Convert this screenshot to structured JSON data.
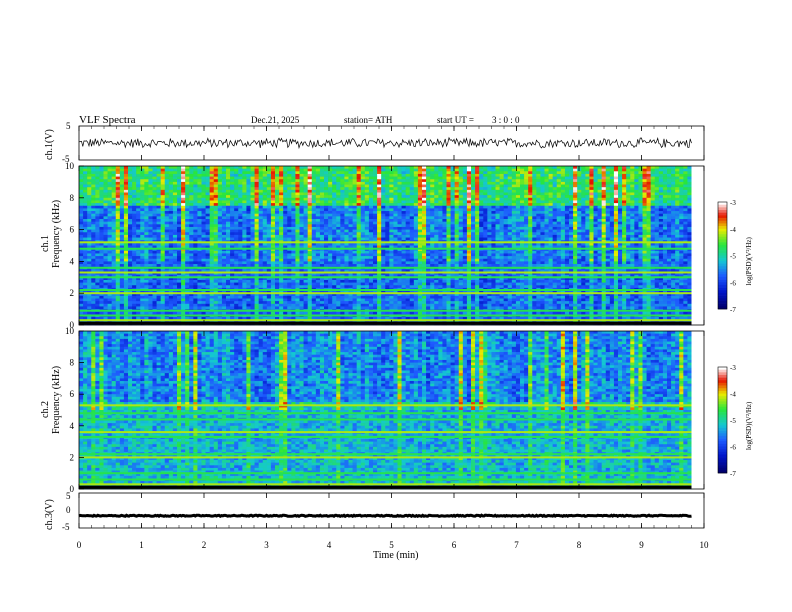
{
  "header": {
    "title": "VLF  Spectra",
    "date": "Dec.21, 2025",
    "station": "station= ATH",
    "start_label": "start  UT  =",
    "start_time": "3  : 0  : 0"
  },
  "chart_data": [
    {
      "type": "line",
      "name": "ch1-waveform",
      "ylabel": "ch.1(V)",
      "ylim": [
        -5,
        5
      ],
      "yticks": [
        "5",
        "-5"
      ],
      "xlim": [
        0,
        10
      ],
      "description_values": "noisy waveform around 0 V, amplitude roughly ±1 V",
      "baseline": 0,
      "amplitude": 1.0
    },
    {
      "type": "heatmap",
      "name": "ch1-spectrogram",
      "ylabel": "ch.1\nFrequency (kHz)",
      "ylabel_line1": "ch.1",
      "ylabel_line2": "Frequency  (kHz)",
      "ylim": [
        0,
        10
      ],
      "yticks": [
        "0",
        "2",
        "4",
        "6",
        "8",
        "10"
      ],
      "xlim": [
        0,
        9.8
      ],
      "colorbar": {
        "label": "log(PSD)(V²/Hz)",
        "range": [
          -7,
          -3
        ],
        "ticks": [
          "-3",
          "-4",
          "-5",
          "-6",
          "-7"
        ]
      },
      "bands_khz": [
        0.3,
        0.6,
        0.9,
        2.0,
        2.2,
        3.0,
        3.3,
        3.6,
        4.8,
        5.2
      ],
      "dominant": "broadband noise strongest near 8–10 kHz, weaker 4–8 kHz"
    },
    {
      "type": "heatmap",
      "name": "ch2-spectrogram",
      "ylabel_line1": "ch.2",
      "ylabel_line2": "Frequency  (kHz)",
      "ylim": [
        0,
        10
      ],
      "yticks": [
        "0",
        "2",
        "4",
        "6",
        "8",
        "10"
      ],
      "xlim": [
        0,
        9.8
      ],
      "colorbar": {
        "label": "log(PSD)(V²/Hz)",
        "range": [
          -7,
          -3
        ],
        "ticks": [
          "-3",
          "-4",
          "-5",
          "-6",
          "-7"
        ]
      },
      "bands_khz": [
        0.3,
        0.6,
        1.0,
        2.0,
        2.2,
        3.3,
        3.6,
        4.4,
        4.8,
        5.3
      ],
      "dominant": "broadband noise 5–10 kHz"
    },
    {
      "type": "line",
      "name": "ch3-waveform",
      "ylabel": "ch.3(V)",
      "ylim": [
        -5,
        5
      ],
      "yticks": [
        "5",
        "0",
        "-5"
      ],
      "xlim": [
        0,
        10
      ],
      "baseline": -1.5,
      "amplitude": 0.15
    }
  ],
  "xaxis": {
    "label": "Time  (min)",
    "ticks": [
      "0",
      "1",
      "2",
      "3",
      "4",
      "5",
      "6",
      "7",
      "8",
      "9",
      "10"
    ],
    "range": [
      0,
      10
    ]
  },
  "colors": {
    "low": "#000080",
    "mid_low": "#1e50ff",
    "mid": "#14c8c8",
    "mid_high": "#32e632",
    "high": "#f0f000",
    "peak": "#e60000",
    "top": "#ffffff"
  }
}
